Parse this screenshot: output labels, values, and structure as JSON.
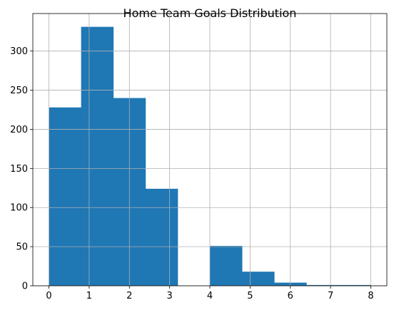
{
  "chart_data": {
    "type": "bar",
    "title": "Home Team Goals Distribution",
    "xlabel": "",
    "ylabel": "",
    "bin_edges": [
      0,
      0.8,
      1.6,
      2.4,
      3.2,
      4.0,
      4.8,
      5.6,
      6.4,
      7.2,
      8.0
    ],
    "values": [
      228,
      331,
      240,
      124,
      0,
      51,
      18,
      4,
      1,
      1
    ],
    "xlim": [
      -0.4,
      8.4
    ],
    "ylim": [
      0,
      348
    ],
    "xticks": [
      0,
      1,
      2,
      3,
      4,
      5,
      6,
      7,
      8
    ],
    "yticks": [
      0,
      50,
      100,
      150,
      200,
      250,
      300
    ],
    "grid": true,
    "bar_color": "#1f77b4"
  }
}
